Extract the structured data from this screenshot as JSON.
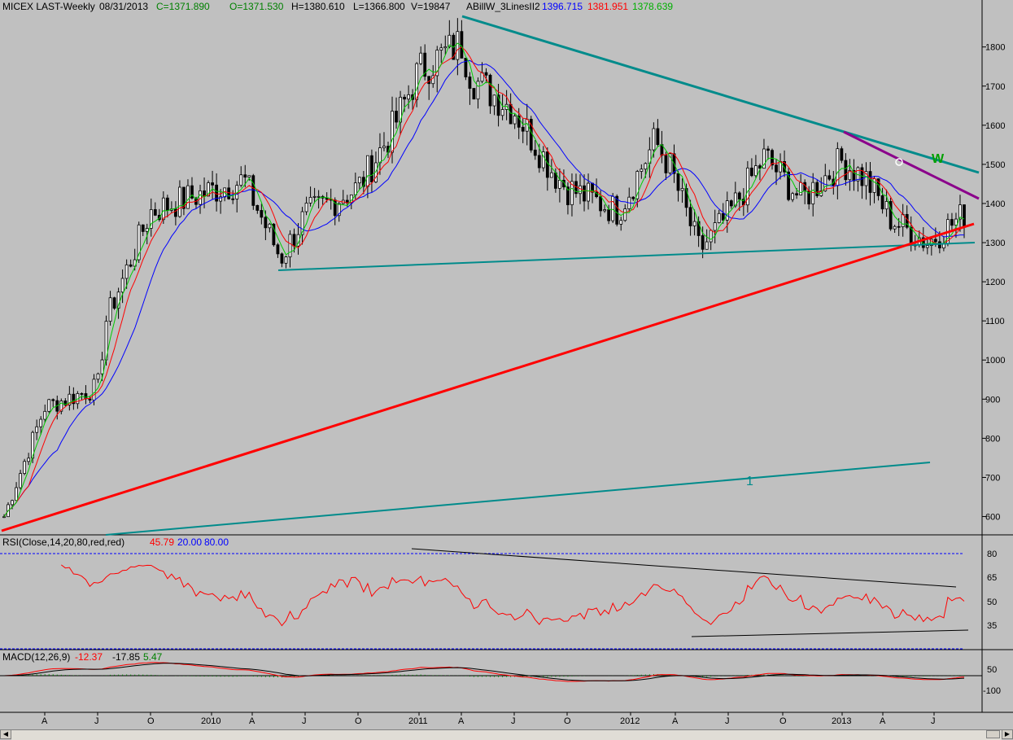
{
  "header": {
    "symbol": "MICEX LAST-Weekly",
    "date": "08/31/2013",
    "close": "C=1371.890",
    "open": "O=1371.530",
    "high": "H=1380.610",
    "low": "L=1366.800",
    "volume": "V=19847",
    "study": "ABillW_3LinesII2",
    "line_blue": "1396.715",
    "line_red": "1381.951",
    "line_green": "1378.639"
  },
  "colors": {
    "background": "#c0c0c0",
    "candle": "#000000",
    "ma_blue": "#0000ff",
    "ma_red": "#ff0000",
    "ma_green": "#00cc00",
    "trend_teal": "#008b8b",
    "trend_red": "#ff0000",
    "trend_purple": "#8b008b",
    "rsi_line": "#ff0000",
    "macd_signal": "#000000",
    "macd_hist": "#008000"
  },
  "annotations": {
    "wave_w": "W",
    "wave_1": "1"
  },
  "rsi_panel": {
    "label": "RSI(Close,14,20,80,red,red)",
    "value": "45.79",
    "lower": "20.00",
    "upper": "80.00",
    "ticks": [
      "80",
      "65",
      "50",
      "35"
    ]
  },
  "macd_panel": {
    "label": "MACD(12,26,9)",
    "macd": "-12.37",
    "signal": "-17.85",
    "hist": "5.47",
    "ticks": [
      "50",
      "-100"
    ]
  },
  "chart_data": {
    "type": "line",
    "price_axis_ticks": [
      "1800",
      "1700",
      "1600",
      "1500",
      "1400",
      "1300",
      "1200",
      "1100",
      "1000",
      "900",
      "800",
      "700",
      "600"
    ],
    "time_axis_labels": [
      "A",
      "J",
      "O",
      "2010",
      "A",
      "J",
      "O",
      "2011",
      "A",
      "J",
      "O",
      "2012",
      "A",
      "J",
      "O",
      "2013",
      "A",
      "J"
    ],
    "series": [
      {
        "name": "Close",
        "x": [
          "2009-03",
          "2009-05",
          "2009-07",
          "2009-09",
          "2009-11",
          "2010-01",
          "2010-03",
          "2010-05",
          "2010-07",
          "2010-09",
          "2010-11",
          "2011-01",
          "2011-03",
          "2011-04",
          "2011-06",
          "2011-08",
          "2011-10",
          "2011-12",
          "2012-02",
          "2012-03",
          "2012-05",
          "2012-07",
          "2012-09",
          "2012-11",
          "2013-01",
          "2013-03",
          "2013-05",
          "2013-06",
          "2013-08"
        ],
        "values": [
          600,
          880,
          930,
          1100,
          1380,
          1430,
          1460,
          1260,
          1370,
          1440,
          1580,
          1740,
          1810,
          1720,
          1640,
          1480,
          1440,
          1380,
          1560,
          1500,
          1280,
          1370,
          1520,
          1410,
          1510,
          1460,
          1360,
          1300,
          1372
        ]
      }
    ],
    "trendlines": [
      {
        "name": "upper",
        "from": [
          "2011-04",
          1855
        ],
        "to": [
          "2013-09",
          1460
        ]
      },
      {
        "name": "support",
        "from": [
          "2010-05",
          1210
        ],
        "to": [
          "2013-09",
          1278
        ]
      },
      {
        "name": "rising",
        "from": [
          "2009-03",
          540
        ],
        "to": [
          "2013-09",
          1325
        ]
      }
    ]
  }
}
